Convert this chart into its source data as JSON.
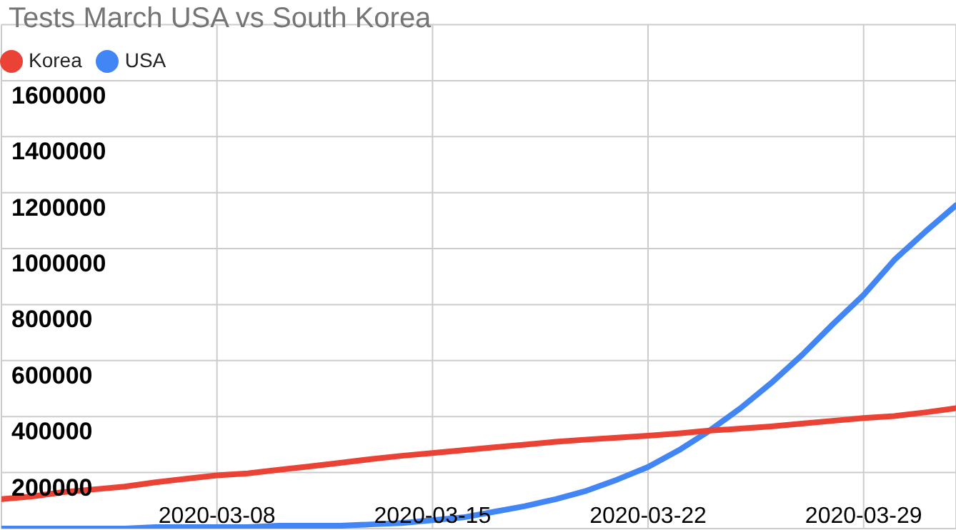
{
  "chart_data": {
    "type": "line",
    "title": "Tests March USA vs South Korea",
    "x": [
      "2020-03-01",
      "2020-03-02",
      "2020-03-03",
      "2020-03-04",
      "2020-03-05",
      "2020-03-06",
      "2020-03-07",
      "2020-03-08",
      "2020-03-09",
      "2020-03-10",
      "2020-03-11",
      "2020-03-12",
      "2020-03-13",
      "2020-03-14",
      "2020-03-15",
      "2020-03-16",
      "2020-03-17",
      "2020-03-18",
      "2020-03-19",
      "2020-03-20",
      "2020-03-21",
      "2020-03-22",
      "2020-03-23",
      "2020-03-24",
      "2020-03-25",
      "2020-03-26",
      "2020-03-27",
      "2020-03-28",
      "2020-03-29",
      "2020-03-30",
      "2020-03-31",
      "2020-04-01"
    ],
    "series": [
      {
        "name": "USA",
        "color": "#4285f4",
        "values": [
          0,
          0,
          0,
          0,
          0,
          5000,
          5000,
          5000,
          5000,
          10000,
          10000,
          10000,
          15000,
          20000,
          30000,
          40000,
          60000,
          80000,
          105000,
          135000,
          175000,
          220000,
          280000,
          350000,
          430000,
          520000,
          620000,
          730000,
          835000,
          960000,
          1060000,
          1155000
        ]
      },
      {
        "name": "Korea",
        "color": "#ea4335",
        "values": [
          105000,
          115000,
          130000,
          140000,
          150000,
          165000,
          178000,
          190000,
          197000,
          210000,
          222000,
          235000,
          248000,
          260000,
          270000,
          280000,
          290000,
          300000,
          310000,
          318000,
          325000,
          332000,
          340000,
          350000,
          357000,
          365000,
          375000,
          385000,
          395000,
          402000,
          415000,
          430000
        ]
      }
    ],
    "xlim": [
      "2020-03-01",
      "2020-04-01"
    ],
    "xticks": [
      {
        "value": "2020-03-08",
        "label": "2020-03-08"
      },
      {
        "value": "2020-03-15",
        "label": "2020-03-15"
      },
      {
        "value": "2020-03-22",
        "label": "2020-03-22"
      },
      {
        "value": "2020-03-29",
        "label": "2020-03-29"
      }
    ],
    "ylim": [
      0,
      1800000
    ],
    "yticks": [
      200000,
      400000,
      600000,
      800000,
      1000000,
      1200000,
      1400000,
      1600000,
      {
        "value": 1800000,
        "label": null
      }
    ],
    "grid": true,
    "legend": "top left",
    "line_style": "solid"
  }
}
